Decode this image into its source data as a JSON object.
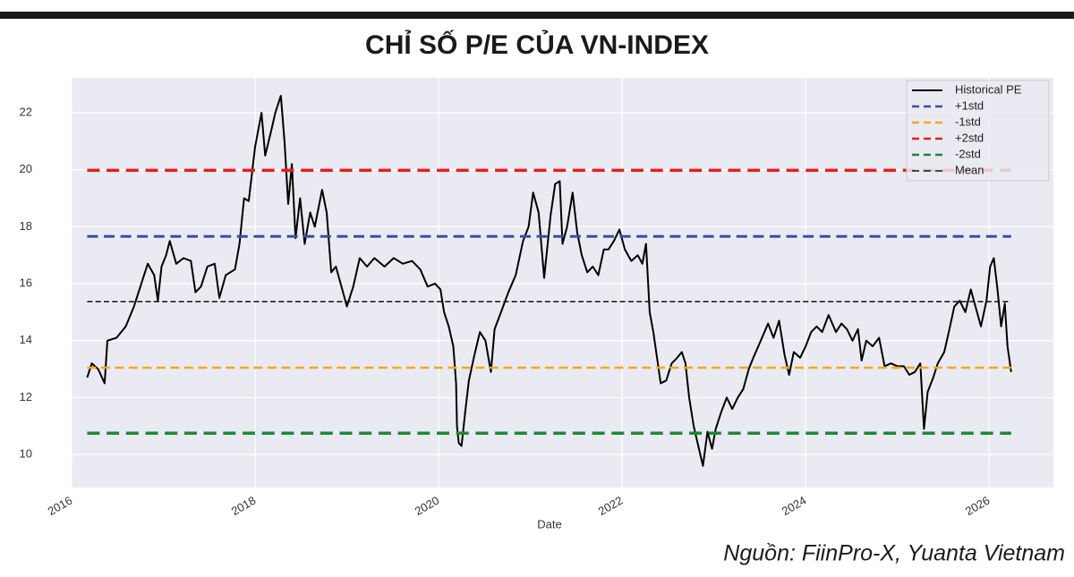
{
  "chart_data": {
    "type": "line",
    "title": "CHỈ SỐ P/E CỦA VN-INDEX",
    "xlabel": "Date",
    "source": "Nguồn: FiinPro-X, Yuanta Vietnam",
    "xlim": [
      2016,
      2026.7
    ],
    "xticks": [
      2016,
      2018,
      2020,
      2022,
      2024,
      2026
    ],
    "ylim": [
      8.84,
      23.23
    ],
    "yticks": [
      10,
      12,
      14,
      16,
      18,
      20,
      22
    ],
    "grid": true,
    "legend": "upper right",
    "series": [
      {
        "name": "Historical PE",
        "color": "#000000",
        "dash": false,
        "width": 2,
        "x": [
          2016.17,
          2016.22,
          2016.29,
          2016.36,
          2016.39,
          2016.49,
          2016.59,
          2016.68,
          2016.76,
          2016.83,
          2016.9,
          2016.94,
          2016.98,
          2017.03,
          2017.07,
          2017.14,
          2017.22,
          2017.3,
          2017.35,
          2017.41,
          2017.48,
          2017.56,
          2017.61,
          2017.68,
          2017.78,
          2017.83,
          2017.88,
          2017.93,
          2018.0,
          2018.07,
          2018.11,
          2018.17,
          2018.22,
          2018.28,
          2018.32,
          2018.36,
          2018.4,
          2018.44,
          2018.49,
          2018.54,
          2018.6,
          2018.65,
          2018.73,
          2018.78,
          2018.83,
          2018.88,
          2018.95,
          2019.0,
          2019.07,
          2019.14,
          2019.22,
          2019.3,
          2019.41,
          2019.51,
          2019.61,
          2019.71,
          2019.8,
          2019.88,
          2019.96,
          2020.02,
          2020.06,
          2020.11,
          2020.16,
          2020.19,
          2020.2,
          2020.22,
          2020.25,
          2020.29,
          2020.33,
          2020.39,
          2020.45,
          2020.51,
          2020.57,
          2020.61,
          2020.68,
          2020.76,
          2020.84,
          2020.92,
          2020.98,
          2021.03,
          2021.09,
          2021.15,
          2021.22,
          2021.27,
          2021.32,
          2021.35,
          2021.4,
          2021.46,
          2021.51,
          2021.56,
          2021.62,
          2021.68,
          2021.74,
          2021.8,
          2021.85,
          2021.91,
          2021.97,
          2022.03,
          2022.1,
          2022.17,
          2022.22,
          2022.26,
          2022.3,
          2022.34,
          2022.38,
          2022.42,
          2022.48,
          2022.54,
          2022.6,
          2022.65,
          2022.69,
          2022.73,
          2022.78,
          2022.83,
          2022.88,
          2022.93,
          2022.98,
          2023.02,
          2023.08,
          2023.14,
          2023.2,
          2023.26,
          2023.32,
          2023.38,
          2023.43,
          2023.51,
          2023.59,
          2023.65,
          2023.71,
          2023.77,
          2023.82,
          2023.87,
          2023.94,
          2024.0,
          2024.06,
          2024.12,
          2024.18,
          2024.25,
          2024.33,
          2024.39,
          2024.45,
          2024.51,
          2024.57,
          2024.61,
          2024.66,
          2024.73,
          2024.8,
          2024.86,
          2024.93,
          2025.0,
          2025.07,
          2025.13,
          2025.19,
          2025.25,
          2025.29,
          2025.33,
          2025.39,
          2025.44,
          2025.51,
          2025.56,
          2025.62,
          2025.68,
          2025.74,
          2025.8,
          2025.85,
          2025.91,
          2025.97,
          2026.01,
          2026.05,
          2026.09,
          2026.13,
          2026.17,
          2026.2,
          2026.24
        ],
        "values": [
          12.7,
          13.2,
          13.0,
          12.5,
          14.0,
          14.1,
          14.5,
          15.2,
          16.0,
          16.7,
          16.3,
          15.4,
          16.6,
          17.0,
          17.5,
          16.7,
          16.9,
          16.8,
          15.7,
          15.9,
          16.6,
          16.7,
          15.5,
          16.3,
          16.5,
          17.4,
          19.0,
          18.9,
          20.8,
          22.0,
          20.5,
          21.3,
          22.0,
          22.6,
          21.0,
          18.8,
          20.2,
          17.6,
          19.0,
          17.4,
          18.5,
          18.0,
          19.3,
          18.5,
          16.4,
          16.6,
          15.8,
          15.2,
          15.9,
          16.9,
          16.6,
          16.9,
          16.6,
          16.9,
          16.7,
          16.8,
          16.5,
          15.9,
          16.0,
          15.8,
          15.0,
          14.5,
          13.8,
          12.5,
          11.0,
          10.4,
          10.3,
          11.5,
          12.6,
          13.5,
          14.3,
          14.0,
          12.9,
          14.4,
          15.0,
          15.7,
          16.3,
          17.5,
          18.0,
          19.2,
          18.5,
          16.2,
          18.4,
          19.5,
          19.6,
          17.4,
          18.0,
          19.2,
          17.8,
          17.0,
          16.4,
          16.6,
          16.3,
          17.2,
          17.2,
          17.5,
          17.9,
          17.2,
          16.8,
          17.0,
          16.7,
          17.4,
          15.0,
          14.3,
          13.4,
          12.5,
          12.6,
          13.2,
          13.4,
          13.6,
          13.2,
          12.0,
          11.0,
          10.3,
          9.6,
          10.8,
          10.2,
          10.9,
          11.5,
          12.0,
          11.6,
          12.0,
          12.3,
          13.0,
          13.4,
          14.0,
          14.6,
          14.1,
          14.7,
          13.5,
          12.8,
          13.6,
          13.4,
          13.8,
          14.3,
          14.5,
          14.3,
          14.9,
          14.3,
          14.6,
          14.4,
          14.0,
          14.4,
          13.3,
          14.0,
          13.8,
          14.1,
          13.1,
          13.2,
          13.1,
          13.1,
          12.8,
          12.9,
          13.2,
          10.9,
          12.2,
          12.7,
          13.2,
          13.6,
          14.3,
          15.2,
          15.4,
          15.0,
          15.8,
          15.2,
          14.5,
          15.4,
          16.6,
          16.9,
          15.8,
          14.5,
          15.3,
          13.8,
          12.9
        ]
      },
      {
        "name": "+1std",
        "color": "#3a4fa0",
        "dash": true,
        "width": 3,
        "x": [
          2016.17,
          2026.24
        ],
        "values": [
          17.66,
          17.66
        ]
      },
      {
        "name": "-1std",
        "color": "#f5a623",
        "dash": true,
        "width": 2.5,
        "x": [
          2016.17,
          2026.24
        ],
        "values": [
          13.05,
          13.05
        ]
      },
      {
        "name": "+2std",
        "color": "#e02020",
        "dash": true,
        "width": 3.5,
        "x": [
          2016.17,
          2026.24
        ],
        "values": [
          19.98,
          19.98
        ]
      },
      {
        "name": "-2std",
        "color": "#1a8a35",
        "dash": true,
        "width": 3.5,
        "x": [
          2016.17,
          2026.24
        ],
        "values": [
          10.75,
          10.75
        ]
      },
      {
        "name": "Mean",
        "color": "#111111",
        "dash": true,
        "width": 1.5,
        "x": [
          2016.17,
          2026.24
        ],
        "values": [
          15.37,
          15.37
        ]
      }
    ]
  }
}
